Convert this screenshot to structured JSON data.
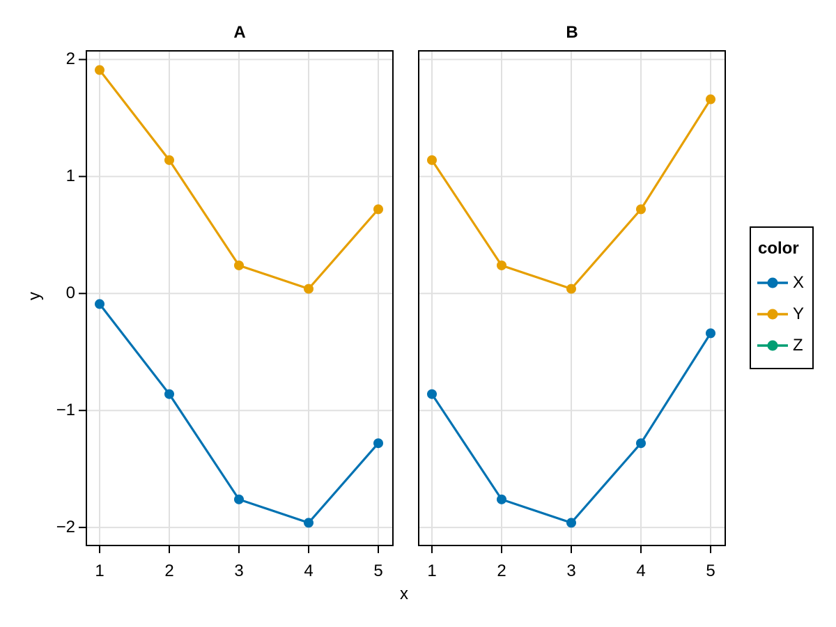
{
  "chart_data": {
    "type": "line",
    "xlabel": "x",
    "ylabel": "y",
    "xlim": [
      0.8,
      5.22
    ],
    "ylim": [
      -2.16,
      2.08
    ],
    "grid": true,
    "x_ticks": [
      {
        "v": 1,
        "label": "1"
      },
      {
        "v": 2,
        "label": "2"
      },
      {
        "v": 3,
        "label": "3"
      },
      {
        "v": 4,
        "label": "4"
      },
      {
        "v": 5,
        "label": "5"
      }
    ],
    "y_ticks": [
      {
        "v": 2,
        "label": "2"
      },
      {
        "v": 1,
        "label": "1"
      },
      {
        "v": 0,
        "label": "0"
      },
      {
        "v": -1,
        "label": "−1"
      },
      {
        "v": -2,
        "label": "−2"
      }
    ],
    "facets": [
      {
        "title": "A",
        "x": [
          1,
          2,
          3,
          4,
          5
        ],
        "series": [
          {
            "name": "X",
            "color": "#0072B2",
            "values": [
              -0.09,
              -0.86,
              -1.76,
              -1.96,
              -1.28
            ]
          },
          {
            "name": "Y",
            "color": "#E69F00",
            "values": [
              1.91,
              1.14,
              0.24,
              0.04,
              0.72
            ]
          }
        ]
      },
      {
        "title": "B",
        "x": [
          1,
          2,
          3,
          4,
          5
        ],
        "series": [
          {
            "name": "X",
            "color": "#0072B2",
            "values": [
              -0.86,
              -1.76,
              -1.96,
              -1.28,
              -0.34
            ]
          },
          {
            "name": "Y",
            "color": "#E69F00",
            "values": [
              1.14,
              0.24,
              0.04,
              0.72,
              1.66
            ]
          }
        ]
      }
    ],
    "legend": {
      "title": "color",
      "position": "right",
      "entries": [
        {
          "label": "X",
          "color": "#0072B2"
        },
        {
          "label": "Y",
          "color": "#E69F00"
        },
        {
          "label": "Z",
          "color": "#009E73"
        }
      ]
    },
    "style": {
      "background": "#ffffff",
      "grid_color": "#e0e0e0",
      "spine_color": "#000000",
      "tick_color": "#000000"
    }
  }
}
